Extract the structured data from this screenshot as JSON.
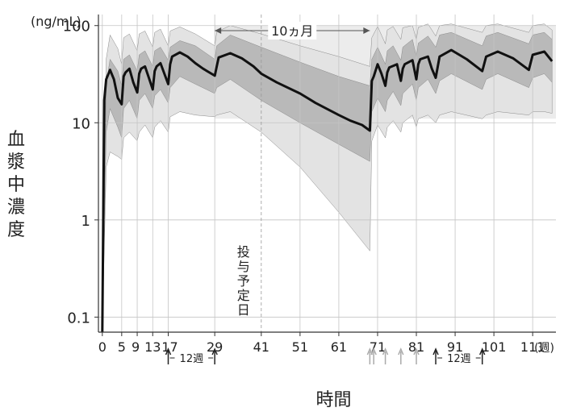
{
  "chart_data": {
    "type": "line",
    "y_unit": "(ng/mL)",
    "ylabel": "血漿中濃度",
    "xlabel": "時間",
    "x_unit_label": "(週)",
    "y_scale": "log",
    "ylim": [
      0.07,
      130
    ],
    "xlim": [
      -1,
      117
    ],
    "y_ticks": [
      0.1,
      1,
      10,
      100
    ],
    "y_tick_labels": [
      "0.1",
      "1",
      "10",
      "100"
    ],
    "x_ticks": [
      0,
      5,
      9,
      13,
      17,
      29,
      41,
      51,
      61,
      71,
      81,
      91,
      101,
      111
    ],
    "x_tick_labels": [
      "0",
      "5",
      "9",
      "13",
      "17",
      "29",
      "41",
      "51",
      "61",
      "71",
      "81",
      "91",
      "101",
      "111"
    ],
    "annotations": {
      "gap_label": "10ヵ月",
      "gap_range": [
        29,
        69
      ],
      "planned_dosing_day": "投与予定日",
      "planned_dosing_x": 41,
      "interval_label_1": "12週",
      "interval_range_1": [
        17,
        29
      ],
      "interval_label_2": "12週",
      "interval_range_2": [
        86,
        98
      ]
    },
    "dose_markers": {
      "second_course": [
        69,
        70,
        73,
        77,
        81
      ]
    },
    "reference_band": [
      11,
      100
    ],
    "series": [
      {
        "role": "median",
        "color": "#111111",
        "x": [
          0,
          0.5,
          1,
          2,
          3,
          4,
          5,
          5.5,
          6,
          7,
          8,
          9,
          9.5,
          10,
          11,
          12,
          13,
          13.5,
          14,
          15,
          16,
          17,
          17.5,
          18,
          20,
          22,
          24,
          26,
          29,
          29.5,
          30,
          33,
          36,
          39,
          41,
          45,
          51,
          55,
          61,
          64,
          67,
          69,
          69.5,
          70,
          71,
          72,
          73,
          73.5,
          74,
          76,
          77,
          77.5,
          78,
          80,
          81,
          81.5,
          82,
          84,
          85,
          86,
          87,
          90,
          94,
          98,
          99,
          102,
          106,
          110,
          111,
          114,
          116
        ],
        "y": [
          0.07,
          17,
          28,
          35,
          28,
          18,
          15.5,
          30,
          33,
          36,
          26,
          20.5,
          32,
          36,
          38,
          29,
          22,
          34,
          38,
          41,
          32,
          25,
          40,
          48,
          53,
          48,
          41,
          36,
          30.5,
          38,
          47,
          52,
          46,
          38,
          32,
          26,
          20,
          16,
          12,
          10.5,
          9.5,
          8.3,
          27,
          30,
          40,
          32,
          24,
          33,
          37,
          40,
          27,
          36,
          40,
          44,
          28,
          40,
          45,
          48,
          36,
          29,
          48,
          56,
          45,
          34,
          48,
          54,
          46,
          35,
          50,
          54,
          43
        ]
      },
      {
        "role": "band-90",
        "color": "#e3e3e3",
        "x": [
          0,
          1,
          2,
          4,
          5,
          5.5,
          7,
          9,
          9.5,
          11,
          13,
          13.5,
          15,
          17,
          17.5,
          20,
          24,
          29,
          29.5,
          33,
          41,
          51,
          61,
          69,
          69.5,
          71,
          73,
          73.5,
          75,
          77,
          77.5,
          80,
          81,
          81.5,
          84,
          86,
          87,
          90,
          98,
          99,
          102,
          110,
          111,
          114,
          116
        ],
        "upper": [
          0.07,
          45,
          80,
          58,
          40,
          75,
          82,
          55,
          82,
          88,
          60,
          85,
          92,
          62,
          88,
          97,
          82,
          62,
          86,
          100,
          82,
          62,
          48,
          38,
          75,
          98,
          65,
          90,
          98,
          72,
          95,
          100,
          72,
          96,
          104,
          78,
          100,
          104,
          85,
          100,
          104,
          85,
          100,
          104,
          90
        ],
        "lower": [
          0.07,
          3.5,
          5,
          4.5,
          4.2,
          7,
          8,
          6.5,
          8,
          9.5,
          7,
          9,
          10.5,
          8,
          11.5,
          13,
          12,
          11.5,
          12,
          13,
          8,
          3.5,
          1.2,
          0.48,
          6.5,
          9.5,
          7,
          9,
          10.5,
          8,
          10,
          12,
          9,
          11,
          12,
          10,
          12,
          13,
          11,
          12,
          13,
          12,
          13,
          13,
          12.5
        ]
      },
      {
        "role": "band-50",
        "color": "#b9b9b9",
        "x": [
          0,
          1,
          2,
          4,
          5,
          5.5,
          7,
          9,
          9.5,
          11,
          13,
          13.5,
          15,
          17,
          17.5,
          20,
          24,
          29,
          29.5,
          33,
          41,
          51,
          61,
          69,
          69.5,
          71,
          73,
          73.5,
          75,
          77,
          77.5,
          80,
          81,
          81.5,
          84,
          86,
          87,
          90,
          98,
          99,
          102,
          110,
          111,
          114,
          116
        ],
        "upper": [
          0.07,
          25,
          45,
          34,
          24,
          45,
          50,
          34,
          50,
          55,
          38,
          55,
          60,
          44,
          60,
          70,
          62,
          45,
          62,
          80,
          60,
          42,
          30,
          24,
          45,
          60,
          40,
          55,
          62,
          44,
          60,
          72,
          48,
          66,
          78,
          60,
          80,
          85,
          62,
          78,
          85,
          65,
          80,
          85,
          72
        ],
        "lower": [
          0.07,
          8,
          14,
          9,
          7,
          14,
          17,
          11,
          17,
          20,
          14,
          19,
          22,
          16,
          23,
          30,
          25,
          20,
          23,
          28,
          17,
          10,
          6,
          4,
          13,
          18,
          13,
          17,
          21,
          15,
          20,
          25,
          17,
          23,
          28,
          20,
          27,
          32,
          22,
          28,
          32,
          23,
          29,
          32,
          26
        ]
      }
    ]
  }
}
